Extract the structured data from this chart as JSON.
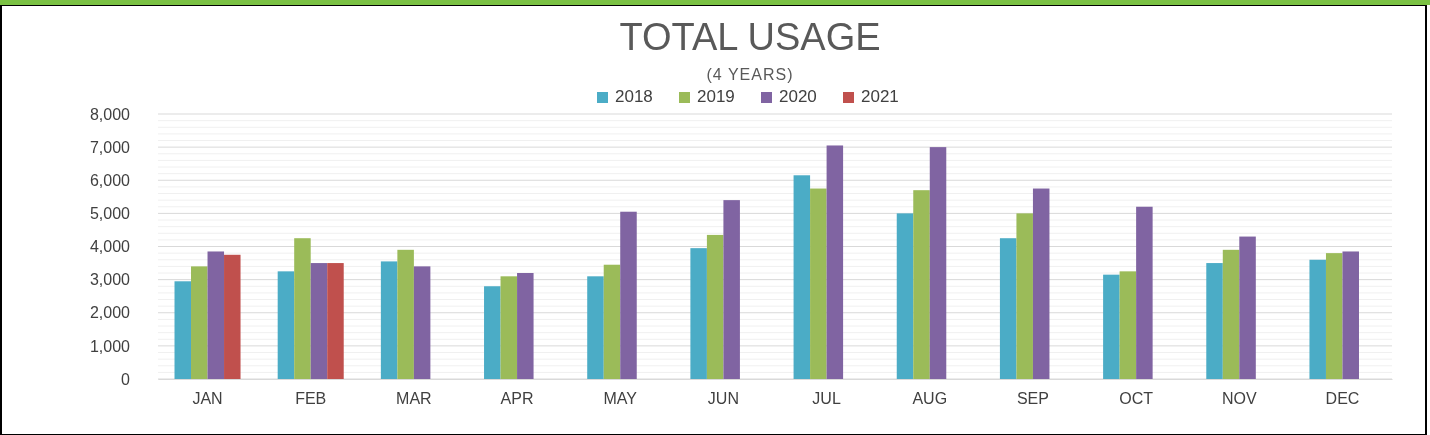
{
  "chart_data": {
    "type": "bar",
    "title": "TOTAL USAGE",
    "subtitle": "(4 YEARS)",
    "categories": [
      "JAN",
      "FEB",
      "MAR",
      "APR",
      "MAY",
      "JUN",
      "JUL",
      "AUG",
      "SEP",
      "OCT",
      "NOV",
      "DEC"
    ],
    "series": [
      {
        "name": "2018",
        "color": "#4bacc6",
        "values": [
          2950,
          3250,
          3550,
          2800,
          3100,
          3950,
          6150,
          5000,
          4250,
          3150,
          3500,
          3600
        ]
      },
      {
        "name": "2019",
        "color": "#9bbb59",
        "values": [
          3400,
          4250,
          3900,
          3100,
          3450,
          4350,
          5750,
          5700,
          5000,
          3250,
          3900,
          3800
        ]
      },
      {
        "name": "2020",
        "color": "#8064a2",
        "values": [
          3850,
          3500,
          3400,
          3200,
          5050,
          5400,
          7050,
          7000,
          5750,
          5200,
          4300,
          3850
        ]
      },
      {
        "name": "2021",
        "color": "#c0504d",
        "values": [
          3750,
          3500,
          null,
          null,
          null,
          null,
          null,
          null,
          null,
          null,
          null,
          null
        ]
      }
    ],
    "ylim": [
      0,
      8000
    ],
    "yticks": [
      {
        "value": 0,
        "label": "0"
      },
      {
        "value": 1000,
        "label": "1,000"
      },
      {
        "value": 2000,
        "label": "2,000"
      },
      {
        "value": 3000,
        "label": "3,000"
      },
      {
        "value": 4000,
        "label": "4,000"
      },
      {
        "value": 5000,
        "label": "5,000"
      },
      {
        "value": 6000,
        "label": "6,000"
      },
      {
        "value": 7000,
        "label": "7,000"
      },
      {
        "value": 8000,
        "label": "8,000"
      }
    ],
    "grid": "y",
    "legend": "top"
  }
}
